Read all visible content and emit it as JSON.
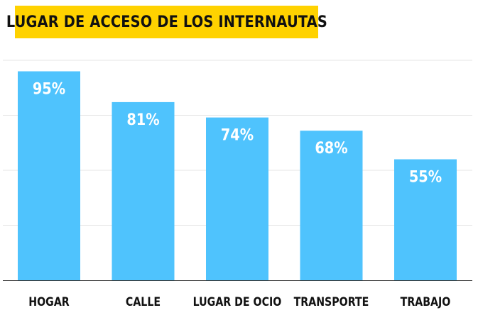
{
  "title": "LUGAR DE ACCESO DE LOS INTERNAUTAS",
  "colors": {
    "bar": "#4fc3fd",
    "title_bg": "#ffd200",
    "grid": "#e6e6e6",
    "axis": "#333333"
  },
  "chart_data": {
    "type": "bar",
    "title": "LUGAR DE ACCESO DE LOS INTERNAUTAS",
    "categories": [
      "HOGAR",
      "CALLE",
      "LUGAR DE OCIO",
      "TRANSPORTE",
      "TRABAJO"
    ],
    "values": [
      95,
      81,
      74,
      68,
      55
    ],
    "data_labels": [
      "95%",
      "81%",
      "74%",
      "68%",
      "55%"
    ],
    "ylim": [
      0,
      100
    ],
    "yticks": [
      0,
      25,
      50,
      75,
      100
    ],
    "grid": true,
    "legend": "none",
    "xlabel": "",
    "ylabel": ""
  }
}
